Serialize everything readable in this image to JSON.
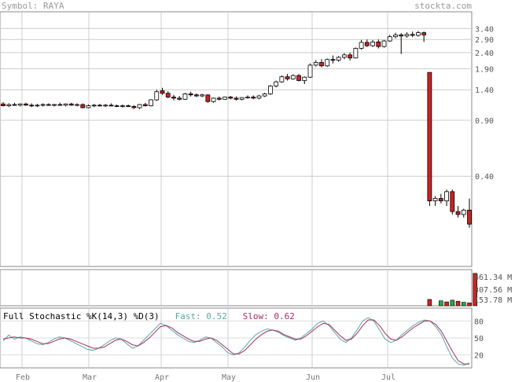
{
  "header": {
    "symbol_label": "Symbol: RAYA",
    "source": "stockta.com"
  },
  "chart_data": {
    "type": "candlestick",
    "symbol": "RAYA",
    "price_axis": {
      "scale": "log",
      "ticks": [
        3.4,
        2.9,
        2.4,
        1.9,
        1.4,
        0.9,
        0.4
      ]
    },
    "volume_axis": {
      "ticks": [
        "461.34 M",
        "307.56 M",
        "153.78 M"
      ]
    },
    "stochastic": {
      "label": "Full Stochastic %K(14,3) %D(3)",
      "fast_label": "Fast: 0.52",
      "slow_label": "Slow: 0.62",
      "ticks": [
        80,
        50,
        20
      ]
    },
    "months": [
      "Feb",
      "Mar",
      "Apr",
      "May",
      "Jun",
      "Jul"
    ],
    "candles": [
      {
        "o": 1.14,
        "h": 1.17,
        "l": 1.1,
        "c": 1.11
      },
      {
        "o": 1.11,
        "h": 1.15,
        "l": 1.09,
        "c": 1.13
      },
      {
        "o": 1.13,
        "h": 1.16,
        "l": 1.11,
        "c": 1.12
      },
      {
        "o": 1.12,
        "h": 1.15,
        "l": 1.1,
        "c": 1.14
      },
      {
        "o": 1.14,
        "h": 1.16,
        "l": 1.11,
        "c": 1.12
      },
      {
        "o": 1.12,
        "h": 1.15,
        "l": 1.09,
        "c": 1.11
      },
      {
        "o": 1.11,
        "h": 1.14,
        "l": 1.09,
        "c": 1.12
      },
      {
        "o": 1.12,
        "h": 1.15,
        "l": 1.1,
        "c": 1.13
      },
      {
        "o": 1.13,
        "h": 1.15,
        "l": 1.11,
        "c": 1.12
      },
      {
        "o": 1.12,
        "h": 1.14,
        "l": 1.1,
        "c": 1.13
      },
      {
        "o": 1.13,
        "h": 1.16,
        "l": 1.11,
        "c": 1.12
      },
      {
        "o": 1.12,
        "h": 1.15,
        "l": 1.1,
        "c": 1.14
      },
      {
        "o": 1.14,
        "h": 1.16,
        "l": 1.11,
        "c": 1.12
      },
      {
        "o": 1.12,
        "h": 1.15,
        "l": 1.1,
        "c": 1.13
      },
      {
        "o": 1.13,
        "h": 1.15,
        "l": 1.07,
        "c": 1.08
      },
      {
        "o": 1.08,
        "h": 1.13,
        "l": 1.07,
        "c": 1.11
      },
      {
        "o": 1.11,
        "h": 1.14,
        "l": 1.09,
        "c": 1.12
      },
      {
        "o": 1.12,
        "h": 1.14,
        "l": 1.1,
        "c": 1.11
      },
      {
        "o": 1.11,
        "h": 1.14,
        "l": 1.09,
        "c": 1.12
      },
      {
        "o": 1.12,
        "h": 1.15,
        "l": 1.1,
        "c": 1.11
      },
      {
        "o": 1.11,
        "h": 1.13,
        "l": 1.09,
        "c": 1.1
      },
      {
        "o": 1.1,
        "h": 1.13,
        "l": 1.08,
        "c": 1.11
      },
      {
        "o": 1.11,
        "h": 1.13,
        "l": 1.09,
        "c": 1.1
      },
      {
        "o": 1.1,
        "h": 1.12,
        "l": 1.06,
        "c": 1.08
      },
      {
        "o": 1.08,
        "h": 1.14,
        "l": 1.06,
        "c": 1.13
      },
      {
        "o": 1.13,
        "h": 1.16,
        "l": 1.1,
        "c": 1.11
      },
      {
        "o": 1.11,
        "h": 1.22,
        "l": 1.1,
        "c": 1.21
      },
      {
        "o": 1.21,
        "h": 1.4,
        "l": 1.19,
        "c": 1.36
      },
      {
        "o": 1.38,
        "h": 1.44,
        "l": 1.3,
        "c": 1.33
      },
      {
        "o": 1.33,
        "h": 1.37,
        "l": 1.24,
        "c": 1.26
      },
      {
        "o": 1.26,
        "h": 1.3,
        "l": 1.2,
        "c": 1.24
      },
      {
        "o": 1.24,
        "h": 1.28,
        "l": 1.2,
        "c": 1.22
      },
      {
        "o": 1.22,
        "h": 1.34,
        "l": 1.21,
        "c": 1.32
      },
      {
        "o": 1.32,
        "h": 1.36,
        "l": 1.27,
        "c": 1.3
      },
      {
        "o": 1.3,
        "h": 1.33,
        "l": 1.26,
        "c": 1.28
      },
      {
        "o": 1.28,
        "h": 1.32,
        "l": 1.26,
        "c": 1.3
      },
      {
        "o": 1.3,
        "h": 1.31,
        "l": 1.16,
        "c": 1.18
      },
      {
        "o": 1.18,
        "h": 1.25,
        "l": 1.16,
        "c": 1.24
      },
      {
        "o": 1.24,
        "h": 1.27,
        "l": 1.2,
        "c": 1.22
      },
      {
        "o": 1.22,
        "h": 1.27,
        "l": 1.21,
        "c": 1.26
      },
      {
        "o": 1.26,
        "h": 1.28,
        "l": 1.22,
        "c": 1.24
      },
      {
        "o": 1.24,
        "h": 1.27,
        "l": 1.2,
        "c": 1.22
      },
      {
        "o": 1.22,
        "h": 1.26,
        "l": 1.2,
        "c": 1.25
      },
      {
        "o": 1.25,
        "h": 1.29,
        "l": 1.23,
        "c": 1.26
      },
      {
        "o": 1.26,
        "h": 1.29,
        "l": 1.22,
        "c": 1.24
      },
      {
        "o": 1.24,
        "h": 1.3,
        "l": 1.22,
        "c": 1.28
      },
      {
        "o": 1.28,
        "h": 1.34,
        "l": 1.26,
        "c": 1.32
      },
      {
        "o": 1.32,
        "h": 1.5,
        "l": 1.3,
        "c": 1.48
      },
      {
        "o": 1.48,
        "h": 1.6,
        "l": 1.45,
        "c": 1.57
      },
      {
        "o": 1.57,
        "h": 1.72,
        "l": 1.55,
        "c": 1.69
      },
      {
        "o": 1.69,
        "h": 1.76,
        "l": 1.6,
        "c": 1.64
      },
      {
        "o": 1.64,
        "h": 1.75,
        "l": 1.62,
        "c": 1.72
      },
      {
        "o": 1.72,
        "h": 1.76,
        "l": 1.58,
        "c": 1.6
      },
      {
        "o": 1.6,
        "h": 1.7,
        "l": 1.52,
        "c": 1.68
      },
      {
        "o": 1.68,
        "h": 2.05,
        "l": 1.66,
        "c": 2.0
      },
      {
        "o": 2.0,
        "h": 2.15,
        "l": 1.96,
        "c": 2.08
      },
      {
        "o": 2.08,
        "h": 2.18,
        "l": 1.94,
        "c": 1.98
      },
      {
        "o": 1.98,
        "h": 2.2,
        "l": 1.95,
        "c": 2.17
      },
      {
        "o": 2.17,
        "h": 2.3,
        "l": 2.05,
        "c": 2.15
      },
      {
        "o": 2.15,
        "h": 2.28,
        "l": 2.1,
        "c": 2.24
      },
      {
        "o": 2.24,
        "h": 2.38,
        "l": 2.18,
        "c": 2.32
      },
      {
        "o": 2.32,
        "h": 2.4,
        "l": 2.14,
        "c": 2.22
      },
      {
        "o": 2.22,
        "h": 2.58,
        "l": 2.2,
        "c": 2.55
      },
      {
        "o": 2.55,
        "h": 2.88,
        "l": 2.5,
        "c": 2.78
      },
      {
        "o": 2.78,
        "h": 2.9,
        "l": 2.6,
        "c": 2.65
      },
      {
        "o": 2.65,
        "h": 2.88,
        "l": 2.6,
        "c": 2.8
      },
      {
        "o": 2.8,
        "h": 2.9,
        "l": 2.55,
        "c": 2.62
      },
      {
        "o": 2.62,
        "h": 2.88,
        "l": 2.58,
        "c": 2.84
      },
      {
        "o": 2.84,
        "h": 3.1,
        "l": 2.8,
        "c": 3.02
      },
      {
        "o": 3.02,
        "h": 3.2,
        "l": 2.95,
        "c": 3.1
      },
      {
        "o": 3.1,
        "h": 3.18,
        "l": 2.35,
        "c": 3.05
      },
      {
        "o": 3.05,
        "h": 3.22,
        "l": 2.98,
        "c": 3.12
      },
      {
        "o": 3.12,
        "h": 3.25,
        "l": 3.0,
        "c": 3.08
      },
      {
        "o": 3.08,
        "h": 3.28,
        "l": 3.02,
        "c": 3.2
      },
      {
        "o": 3.2,
        "h": 3.25,
        "l": 2.8,
        "c": 3.1
      },
      {
        "o": 1.8,
        "h": 1.8,
        "l": 0.26,
        "c": 0.28
      },
      {
        "o": 0.28,
        "h": 0.3,
        "l": 0.26,
        "c": 0.29
      },
      {
        "o": 0.29,
        "h": 0.31,
        "l": 0.27,
        "c": 0.28
      },
      {
        "o": 0.28,
        "h": 0.33,
        "l": 0.26,
        "c": 0.32
      },
      {
        "o": 0.32,
        "h": 0.33,
        "l": 0.23,
        "c": 0.24
      },
      {
        "o": 0.24,
        "h": 0.26,
        "l": 0.22,
        "c": 0.23
      },
      {
        "o": 0.23,
        "h": 0.25,
        "l": 0.22,
        "c": 0.245
      },
      {
        "o": 0.245,
        "h": 0.29,
        "l": 0.19,
        "c": 0.2
      }
    ],
    "volume_bars": [
      {
        "i": 75,
        "v": 90,
        "up": false
      },
      {
        "i": 77,
        "v": 70,
        "up": true
      },
      {
        "i": 78,
        "v": 55,
        "up": false
      },
      {
        "i": 79,
        "v": 80,
        "up": true
      },
      {
        "i": 80,
        "v": 65,
        "up": false
      },
      {
        "i": 81,
        "v": 50,
        "up": true
      },
      {
        "i": 82,
        "v": 40,
        "up": false
      },
      {
        "i": 83,
        "v": 461,
        "up": false
      }
    ],
    "stoch_fast": [
      45,
      55,
      48,
      52,
      50,
      45,
      40,
      38,
      42,
      48,
      52,
      50,
      45,
      40,
      35,
      30,
      28,
      32,
      38,
      45,
      50,
      48,
      40,
      32,
      36,
      46,
      56,
      66,
      76,
      72,
      64,
      56,
      50,
      44,
      42,
      46,
      52,
      50,
      42,
      34,
      24,
      20,
      24,
      34,
      46,
      56,
      62,
      66,
      64,
      60,
      54,
      50,
      46,
      50,
      58,
      66,
      76,
      80,
      72,
      60,
      48,
      42,
      50,
      64,
      80,
      86,
      80,
      64,
      48,
      42,
      46,
      56,
      64,
      72,
      78,
      82,
      80,
      70,
      56,
      34,
      14,
      4,
      2,
      6
    ],
    "stoch_slow": [
      48,
      50,
      52,
      50,
      50,
      48,
      44,
      40,
      40,
      44,
      48,
      50,
      48,
      44,
      40,
      36,
      32,
      32,
      34,
      40,
      46,
      48,
      44,
      38,
      36,
      42,
      50,
      60,
      70,
      72,
      68,
      60,
      54,
      48,
      44,
      44,
      48,
      50,
      46,
      38,
      30,
      22,
      22,
      28,
      38,
      48,
      56,
      62,
      64,
      62,
      56,
      52,
      48,
      48,
      54,
      62,
      70,
      76,
      74,
      64,
      54,
      46,
      48,
      58,
      72,
      82,
      82,
      72,
      58,
      48,
      46,
      52,
      60,
      68,
      74,
      80,
      80,
      74,
      62,
      44,
      26,
      10,
      4,
      4
    ]
  }
}
